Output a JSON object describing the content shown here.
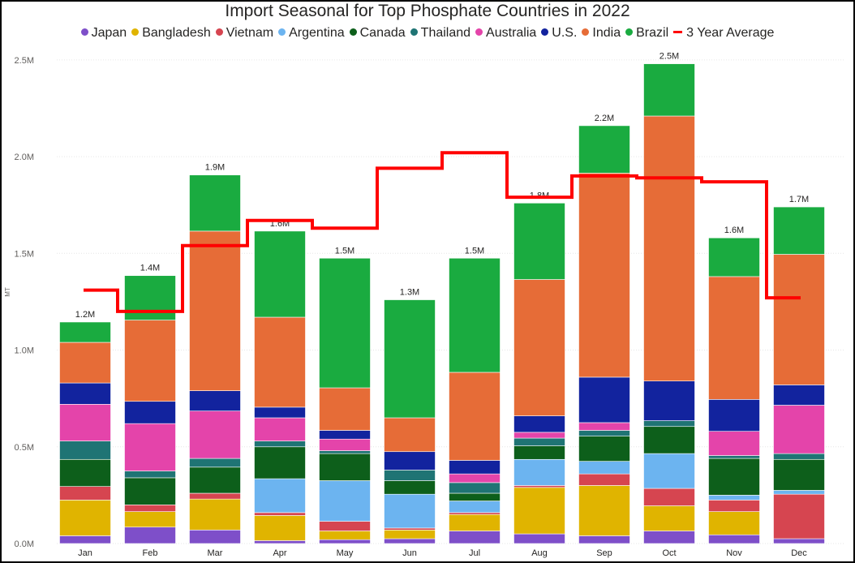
{
  "chart_data": {
    "type": "bar",
    "stacked": true,
    "title": "Import Seasonal for Top Phosphate Countries in 2022",
    "ylabel": "MT",
    "ylim": [
      0,
      2600000
    ],
    "yticks": [
      0,
      500000,
      1000000,
      1500000,
      2000000,
      2500000
    ],
    "ytick_labels": [
      "0.0M",
      "0.5M",
      "1.0M",
      "1.5M",
      "2.0M",
      "2.5M"
    ],
    "grid": true,
    "legend_position": "top",
    "categories": [
      "Jan",
      "Feb",
      "Mar",
      "Apr",
      "May",
      "Jun",
      "Jul",
      "Aug",
      "Sep",
      "Oct",
      "Nov",
      "Dec"
    ],
    "totals_labels": [
      "1.2M",
      "1.4M",
      "1.9M",
      "1.6M",
      "1.5M",
      "1.3M",
      "1.5M",
      "1.8M",
      "2.2M",
      "2.5M",
      "1.6M",
      "1.7M"
    ],
    "series": [
      {
        "name": "Japan",
        "color": "#7E4FC9",
        "values": [
          40000,
          85000,
          70000,
          15000,
          20000,
          25000,
          65000,
          50000,
          40000,
          65000,
          45000,
          25000
        ]
      },
      {
        "name": "Bangladesh",
        "color": "#E0B400",
        "values": [
          185000,
          80000,
          160000,
          130000,
          45000,
          45000,
          85000,
          240000,
          260000,
          130000,
          120000,
          0
        ]
      },
      {
        "name": "Vietnam",
        "color": "#D64550",
        "values": [
          70000,
          35000,
          30000,
          15000,
          50000,
          10000,
          10000,
          10000,
          60000,
          90000,
          60000,
          230000
        ]
      },
      {
        "name": "Argentina",
        "color": "#6CB4F0",
        "values": [
          0,
          0,
          0,
          175000,
          210000,
          175000,
          60000,
          135000,
          65000,
          180000,
          25000,
          20000
        ]
      },
      {
        "name": "Canada",
        "color": "#0D5F1B",
        "values": [
          140000,
          140000,
          135000,
          165000,
          140000,
          70000,
          40000,
          70000,
          130000,
          140000,
          190000,
          160000
        ]
      },
      {
        "name": "Thailand",
        "color": "#1F7474",
        "values": [
          95000,
          35000,
          45000,
          30000,
          15000,
          55000,
          55000,
          40000,
          30000,
          30000,
          15000,
          30000
        ]
      },
      {
        "name": "Australia",
        "color": "#E444AA",
        "values": [
          190000,
          245000,
          245000,
          120000,
          60000,
          0,
          45000,
          30000,
          40000,
          0,
          125000,
          250000
        ]
      },
      {
        "name": "U.S.",
        "color": "#12239E",
        "values": [
          110000,
          115000,
          105000,
          55000,
          45000,
          95000,
          70000,
          85000,
          235000,
          205000,
          165000,
          105000
        ]
      },
      {
        "name": "India",
        "color": "#E66C37",
        "values": [
          210000,
          420000,
          825000,
          465000,
          220000,
          175000,
          455000,
          705000,
          1055000,
          1370000,
          635000,
          675000
        ]
      },
      {
        "name": "Brazil",
        "color": "#1AAB40",
        "values": [
          105000,
          230000,
          290000,
          445000,
          670000,
          610000,
          590000,
          395000,
          245000,
          270000,
          200000,
          245000
        ]
      }
    ],
    "line_series": {
      "name": "3 Year Average",
      "color": "#FF0000",
      "values": [
        1310000,
        1200000,
        1540000,
        1670000,
        1630000,
        1940000,
        2020000,
        1790000,
        1900000,
        1890000,
        1870000,
        1270000
      ]
    }
  }
}
